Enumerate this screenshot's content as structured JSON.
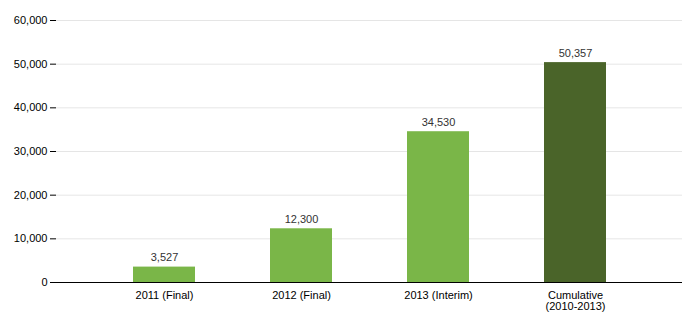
{
  "chart_data": {
    "type": "bar",
    "categories": [
      "2011 (Final)",
      "2012 (Final)",
      "2013 (Interim)",
      "Cumulative\n(2010-2013)"
    ],
    "values": [
      3527,
      12300,
      34530,
      50357
    ],
    "value_labels": [
      "3,527",
      "12,300",
      "34,530",
      "50,357"
    ],
    "colors": [
      "#7ab648",
      "#7ab648",
      "#7ab648",
      "#4a6429"
    ],
    "data_labels": true,
    "ylim": [
      0,
      60000
    ],
    "yticks": [
      0,
      {
        "value": 10000,
        "label": "10,000"
      },
      {
        "value": 20000,
        "label": "20,000"
      },
      {
        "value": 30000,
        "label": "30,000"
      },
      {
        "value": 40000,
        "label": "40,000"
      },
      {
        "value": 50000,
        "label": "50,000"
      },
      {
        "value": 60000,
        "label": "60,000"
      }
    ],
    "grid": true
  }
}
